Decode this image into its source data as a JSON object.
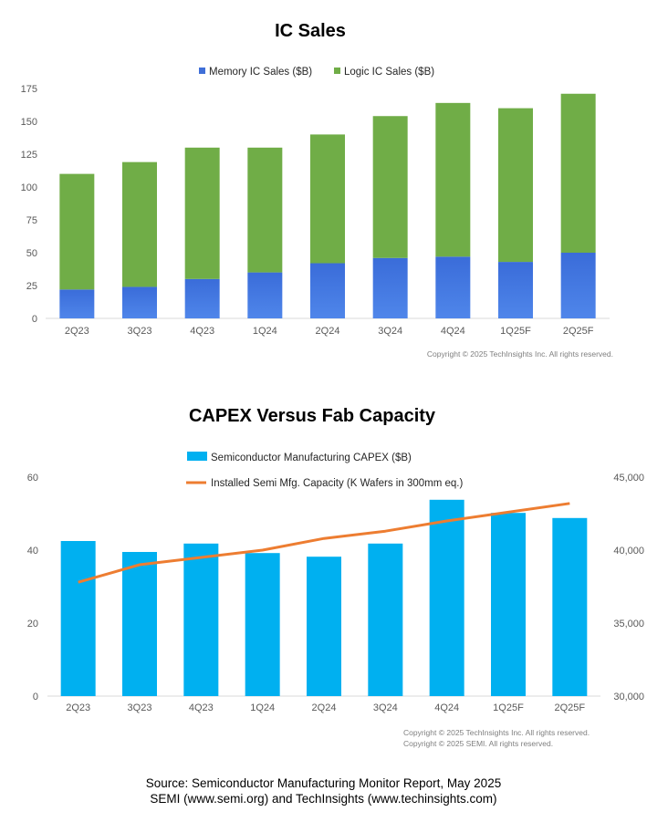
{
  "chart_data": [
    {
      "type": "bar",
      "stacked": true,
      "title": "IC Sales",
      "categories": [
        "2Q23",
        "3Q23",
        "4Q23",
        "1Q24",
        "2Q24",
        "3Q24",
        "4Q24",
        "1Q25F",
        "2Q25F"
      ],
      "series": [
        {
          "name": "Memory IC Sales ($B)",
          "color": "#3f6fd8",
          "values": [
            22,
            24,
            30,
            35,
            42,
            46,
            47,
            43,
            50
          ]
        },
        {
          "name": "Logic IC Sales ($B)",
          "color": "#70ad47",
          "values": [
            88,
            95,
            100,
            95,
            98,
            108,
            117,
            117,
            121
          ]
        }
      ],
      "ylim": [
        0,
        175
      ],
      "yticks": [
        "0",
        "25",
        "50",
        "75",
        "100",
        "125",
        "150",
        "175"
      ],
      "legend_position": "top",
      "grid": false,
      "copyright": "Copyright © 2025 TechInsights Inc.  All rights reserved."
    },
    {
      "type": "bar+line",
      "title": "CAPEX Versus Fab Capacity",
      "categories": [
        "2Q23",
        "3Q23",
        "4Q23",
        "1Q24",
        "2Q24",
        "3Q24",
        "4Q24",
        "1Q25F",
        "2Q25F"
      ],
      "bar_series": {
        "name": "Semiconductor Manufacturing CAPEX ($B)",
        "color": "#00b0f0",
        "values": [
          42.5,
          39.5,
          41.8,
          39.2,
          38.2,
          41.8,
          53.8,
          50.2,
          48.8
        ]
      },
      "line_series": {
        "name": "Installed Semi Mfg. Capacity (K Wafers in 300mm eq.)",
        "color": "#ed7d31",
        "values": [
          37800,
          39000,
          39500,
          40000,
          40800,
          41300,
          42000,
          42600,
          43200
        ]
      },
      "ylim_left": [
        0,
        60
      ],
      "ylim_right": [
        30000,
        45000
      ],
      "yticks_left": [
        "0",
        "20",
        "40",
        "60"
      ],
      "yticks_right": [
        "30,000",
        "35,000",
        "40,000",
        "45,000"
      ],
      "legend_position": "top",
      "grid": false,
      "copyright_lines": [
        "Copyright © 2025 TechInsights Inc.  All rights reserved.",
        "Copyright © 2025 SEMI.  All rights reserved."
      ]
    }
  ],
  "source": {
    "line1": "Source: Semiconductor Manufacturing Monitor Report, May 2025",
    "line2": "SEMI (www.semi.org) and TechInsights (www.techinsights.com)"
  }
}
